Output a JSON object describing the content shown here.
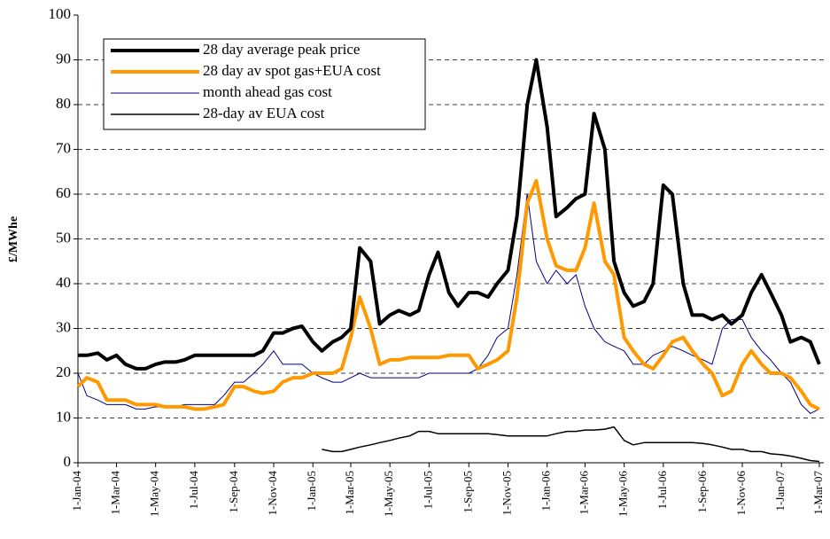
{
  "chart_data": {
    "type": "line",
    "y_label": "£/MWhe",
    "x": [
      "2004-01-01",
      "2004-01-15",
      "2004-02-01",
      "2004-02-15",
      "2004-03-01",
      "2004-03-15",
      "2004-04-01",
      "2004-04-15",
      "2004-05-01",
      "2004-05-15",
      "2004-06-01",
      "2004-06-15",
      "2004-07-01",
      "2004-07-15",
      "2004-08-01",
      "2004-08-15",
      "2004-09-01",
      "2004-09-15",
      "2004-10-01",
      "2004-10-15",
      "2004-11-01",
      "2004-11-15",
      "2004-12-01",
      "2004-12-15",
      "2005-01-01",
      "2005-01-15",
      "2005-02-01",
      "2005-02-15",
      "2005-03-01",
      "2005-03-15",
      "2005-04-01",
      "2005-04-15",
      "2005-05-01",
      "2005-05-15",
      "2005-06-01",
      "2005-06-15",
      "2005-07-01",
      "2005-07-15",
      "2005-08-01",
      "2005-08-15",
      "2005-09-01",
      "2005-09-15",
      "2005-10-01",
      "2005-10-15",
      "2005-11-01",
      "2005-11-15",
      "2005-12-01",
      "2005-12-15",
      "2006-01-01",
      "2006-01-15",
      "2006-02-01",
      "2006-02-15",
      "2006-03-01",
      "2006-03-15",
      "2006-04-01",
      "2006-04-15",
      "2006-05-01",
      "2006-05-15",
      "2006-06-01",
      "2006-06-15",
      "2006-07-01",
      "2006-07-15",
      "2006-08-01",
      "2006-08-15",
      "2006-09-01",
      "2006-09-15",
      "2006-10-01",
      "2006-10-15",
      "2006-11-01",
      "2006-11-15",
      "2006-12-01",
      "2006-12-15",
      "2007-01-01",
      "2007-01-15",
      "2007-02-01",
      "2007-02-15",
      "2007-03-01"
    ],
    "series": [
      {
        "name": "28 day average peak price",
        "color": "#000000",
        "width": 4,
        "values": [
          24,
          24,
          24.5,
          23,
          24,
          22,
          21,
          21,
          22,
          22.5,
          22.5,
          23,
          24,
          24,
          24,
          24,
          24,
          24,
          24,
          25,
          29,
          29,
          30,
          30.5,
          27,
          25,
          27,
          28,
          30,
          48,
          45,
          31,
          33,
          34,
          33,
          34,
          42,
          47,
          38,
          35,
          38,
          38,
          37,
          40,
          43,
          55,
          80,
          90,
          75,
          55,
          57,
          59,
          60,
          78,
          70,
          45,
          38,
          35,
          36,
          40,
          62,
          60,
          40,
          33,
          33,
          32,
          33,
          31,
          33,
          38,
          42,
          38,
          33,
          27,
          28,
          27,
          22
        ]
      },
      {
        "name": "28 day av spot gas+EUA cost",
        "color": "#ff9900",
        "width": 4,
        "values": [
          17,
          19,
          18,
          14,
          14,
          14,
          13,
          13,
          13,
          12.5,
          12.5,
          12.5,
          12,
          12,
          12.5,
          13,
          17,
          17,
          16,
          15.5,
          16,
          18,
          19,
          19,
          20,
          20,
          20,
          21,
          28,
          37,
          30,
          22,
          23,
          23,
          23.5,
          23.5,
          23.5,
          23.5,
          24,
          24,
          24,
          21,
          22,
          23,
          25,
          37,
          58,
          63,
          50,
          44,
          43,
          43,
          48,
          58,
          45,
          42,
          28,
          25,
          22,
          21,
          24,
          27,
          28,
          25,
          22,
          20,
          15,
          16,
          22,
          25,
          22,
          20,
          20,
          19,
          16,
          13,
          12
        ]
      },
      {
        "name": "month ahead gas cost",
        "color": "#000080",
        "width": 1,
        "values": [
          20,
          15,
          14,
          13,
          13,
          13,
          12,
          12,
          12.5,
          12.5,
          12.5,
          13,
          13,
          13,
          13,
          15,
          18,
          18,
          20,
          22,
          25,
          22,
          22,
          22,
          20,
          19,
          18,
          18,
          19,
          20,
          19,
          19,
          19,
          19,
          19,
          19,
          20,
          20,
          20,
          20,
          20,
          21,
          24,
          28,
          30,
          42,
          60,
          45,
          40,
          43,
          40,
          42,
          35,
          30,
          27,
          26,
          25,
          22,
          22,
          24,
          25,
          26,
          25,
          24,
          23,
          22,
          30,
          32,
          32,
          28,
          25,
          23,
          20,
          18,
          13,
          11,
          12
        ]
      },
      {
        "name": "28-day av EUA cost",
        "color": "#000000",
        "width": 1.5,
        "values": [
          null,
          null,
          null,
          null,
          null,
          null,
          null,
          null,
          null,
          null,
          null,
          null,
          null,
          null,
          null,
          null,
          null,
          null,
          null,
          null,
          null,
          null,
          null,
          null,
          null,
          3,
          2.5,
          2.5,
          3,
          3.5,
          4,
          4.5,
          5,
          5.5,
          6,
          7,
          7,
          6.5,
          6.5,
          6.5,
          6.5,
          6.5,
          6.5,
          6.3,
          6,
          6,
          6,
          6,
          6,
          6.5,
          7,
          7,
          7.3,
          7.3,
          7.5,
          8,
          5,
          4,
          4.5,
          4.5,
          4.5,
          4.5,
          4.5,
          4.5,
          4.3,
          4,
          3.5,
          3,
          3,
          2.5,
          2.5,
          2,
          1.8,
          1.5,
          1,
          0.5,
          0.3
        ]
      }
    ],
    "xlim": [
      "2004-01-01",
      "2007-03-08"
    ],
    "xticks": [
      {
        "value": "2004-01-01",
        "label": "1-Jan-04"
      },
      {
        "value": "2004-03-01",
        "label": "1-Mar-04"
      },
      {
        "value": "2004-05-01",
        "label": "1-May-04"
      },
      {
        "value": "2004-07-01",
        "label": "1-Jul-04"
      },
      {
        "value": "2004-09-01",
        "label": "1-Sep-04"
      },
      {
        "value": "2004-11-01",
        "label": "1-Nov-04"
      },
      {
        "value": "2005-01-01",
        "label": "1-Jan-05"
      },
      {
        "value": "2005-03-01",
        "label": "1-Mar-05"
      },
      {
        "value": "2005-05-01",
        "label": "1-May-05"
      },
      {
        "value": "2005-07-01",
        "label": "1-Jul-05"
      },
      {
        "value": "2005-09-01",
        "label": "1-Sep-05"
      },
      {
        "value": "2005-11-01",
        "label": "1-Nov-05"
      },
      {
        "value": "2006-01-01",
        "label": "1-Jan-06"
      },
      {
        "value": "2006-03-01",
        "label": "1-Mar-06"
      },
      {
        "value": "2006-05-01",
        "label": "1-May-06"
      },
      {
        "value": "2006-07-01",
        "label": "1-Jul-06"
      },
      {
        "value": "2006-09-01",
        "label": "1-Sep-06"
      },
      {
        "value": "2006-11-01",
        "label": "1-Nov-06"
      },
      {
        "value": "2007-01-01",
        "label": "1-Jan-07"
      },
      {
        "value": "2007-03-01",
        "label": "1-Mar-07"
      }
    ],
    "ylim": [
      0,
      100
    ],
    "yticks": [
      0,
      10,
      20,
      30,
      40,
      50,
      60,
      70,
      80,
      90,
      100
    ],
    "grid": true,
    "legend": "upper left"
  }
}
